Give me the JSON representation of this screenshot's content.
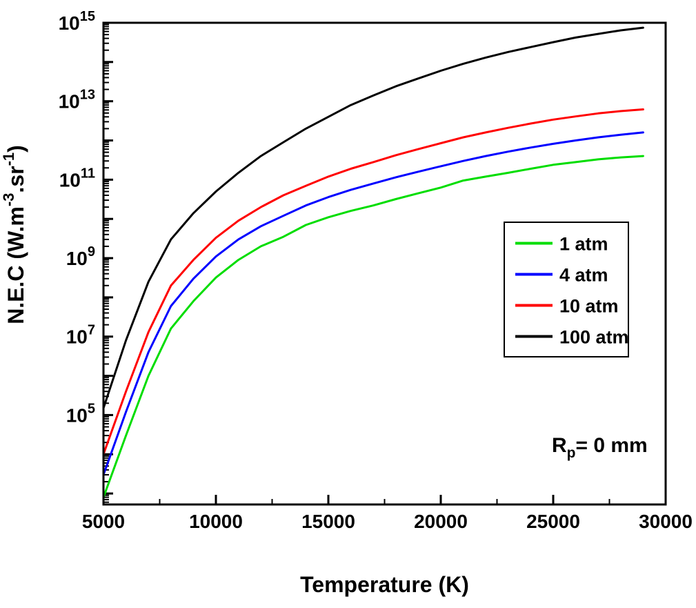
{
  "chart_data": {
    "type": "line",
    "title": "",
    "xlabel": "Temperature (K)",
    "ylabel_parts": [
      {
        "t": "N.E.C (W.m",
        "sup": false
      },
      {
        "t": "-3",
        "sup": true
      },
      {
        "t": ".sr",
        "sup": false
      },
      {
        "t": "-1",
        "sup": true
      },
      {
        "t": ")",
        "sup": false
      }
    ],
    "xlim": [
      5000,
      30000
    ],
    "ylim_log10": [
      2.72,
      15
    ],
    "x_ticks": [
      5000,
      10000,
      15000,
      20000,
      25000,
      30000
    ],
    "x_minor_step": 2500,
    "y_labeled_exponents": [
      5,
      7,
      9,
      11,
      13,
      15
    ],
    "y_base_label": "10",
    "grid": false,
    "legend_position": "right-middle",
    "x": [
      5000,
      6000,
      7000,
      8000,
      9000,
      10000,
      11000,
      12000,
      13000,
      14000,
      15000,
      16000,
      17000,
      18000,
      19000,
      20000,
      21000,
      22000,
      23000,
      24000,
      25000,
      26000,
      27000,
      28000,
      29000
    ],
    "series": [
      {
        "name": "1 atm",
        "color": "#00dd00",
        "values": [
          800.0,
          30000.0,
          1000000.0,
          16000000.0,
          80000000.0,
          320000000.0,
          900000000.0,
          2000000000.0,
          3500000000.0,
          7000000000.0,
          11000000000.0,
          16000000000.0,
          22000000000.0,
          32000000000.0,
          45000000000.0,
          63000000000.0,
          95000000000.0,
          120000000000.0,
          150000000000.0,
          190000000000.0,
          240000000000.0,
          280000000000.0,
          330000000000.0,
          370000000000.0,
          400000000000.0
        ]
      },
      {
        "name": "4 atm",
        "color": "#0000ff",
        "values": [
          3000.0,
          120000.0,
          4000000.0,
          60000000.0,
          300000000.0,
          1100000000.0,
          3000000000.0,
          6500000000.0,
          12000000000.0,
          22000000000.0,
          36000000000.0,
          55000000000.0,
          80000000000.0,
          115000000000.0,
          160000000000.0,
          220000000000.0,
          300000000000.0,
          400000000000.0,
          520000000000.0,
          660000000000.0,
          820000000000.0,
          1000000000000.0,
          1200000000000.0,
          1400000000000.0,
          1600000000000.0
        ]
      },
      {
        "name": "10 atm",
        "color": "#ff0000",
        "values": [
          10000.0,
          400000.0,
          13000000.0,
          200000000.0,
          900000000.0,
          3300000000.0,
          9000000000.0,
          20000000000.0,
          40000000000.0,
          70000000000.0,
          120000000000.0,
          190000000000.0,
          280000000000.0,
          420000000000.0,
          600000000000.0,
          850000000000.0,
          1200000000000.0,
          1600000000000.0,
          2100000000000.0,
          2700000000000.0,
          3400000000000.0,
          4100000000000.0,
          4900000000000.0,
          5600000000000.0,
          6200000000000.0
        ]
      },
      {
        "name": "100 atm",
        "color": "#000000",
        "values": [
          150000.0,
          8000000.0,
          250000000.0,
          3000000000.0,
          14000000000.0,
          50000000000.0,
          150000000000.0,
          400000000000.0,
          900000000000.0,
          2000000000000.0,
          4000000000000.0,
          8000000000000.0,
          14000000000000.0,
          24000000000000.0,
          38000000000000.0,
          60000000000000.0,
          90000000000000.0,
          130000000000000.0,
          180000000000000.0,
          240000000000000.0,
          320000000000000.0,
          420000000000000.0,
          520000000000000.0,
          640000000000000.0,
          750000000000000.0
        ]
      }
    ],
    "annotation": {
      "main": "R",
      "sub": "p",
      "rest": "= 0 mm"
    }
  }
}
